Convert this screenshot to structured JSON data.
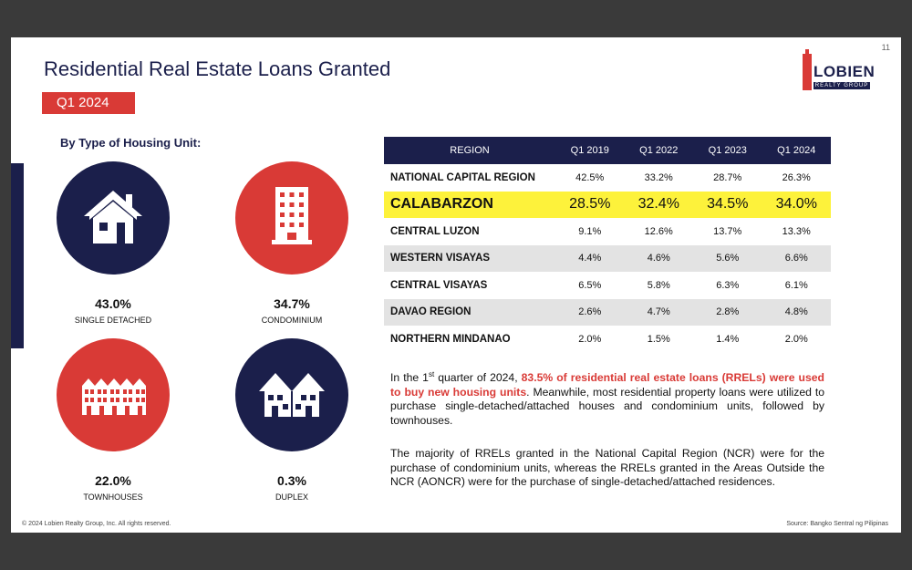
{
  "slide": {
    "page_number": "11",
    "title": "Residential Real Estate Loans Granted",
    "quarter": "Q1 2024",
    "logo": {
      "name": "LOBIEN",
      "tagline": "REALTY GROUP"
    },
    "left_heading": "By Type of Housing Unit:",
    "housing_units": [
      {
        "percent": "43.0%",
        "label": "SINGLE DETACHED",
        "icon": "house-icon",
        "color": "#1b1f4b"
      },
      {
        "percent": "34.7%",
        "label": "CONDOMINIUM",
        "icon": "building-icon",
        "color": "#d93a36"
      },
      {
        "percent": "22.0%",
        "label": "TOWNHOUSES",
        "icon": "townhouses-icon",
        "color": "#d93a36"
      },
      {
        "percent": "0.3%",
        "label": "DUPLEX",
        "icon": "duplex-icon",
        "color": "#1b1f4b"
      }
    ],
    "table": {
      "headers": [
        "REGION",
        "Q1 2019",
        "Q1 2022",
        "Q1 2023",
        "Q1 2024"
      ],
      "rows": [
        {
          "region": "NATIONAL CAPITAL REGION",
          "values": [
            "42.5%",
            "33.2%",
            "28.7%",
            "26.3%"
          ]
        },
        {
          "region": "CALABARZON",
          "values": [
            "28.5%",
            "32.4%",
            "34.5%",
            "34.0%"
          ],
          "highlight": true
        },
        {
          "region": "CENTRAL LUZON",
          "values": [
            "9.1%",
            "12.6%",
            "13.7%",
            "13.3%"
          ]
        },
        {
          "region": "WESTERN VISAYAS",
          "values": [
            "4.4%",
            "4.6%",
            "5.6%",
            "6.6%"
          ]
        },
        {
          "region": "CENTRAL VISAYAS",
          "values": [
            "6.5%",
            "5.8%",
            "6.3%",
            "6.1%"
          ]
        },
        {
          "region": "DAVAO REGION",
          "values": [
            "2.6%",
            "4.7%",
            "2.8%",
            "4.8%"
          ]
        },
        {
          "region": "NORTHERN MINDANAO",
          "values": [
            "2.0%",
            "1.5%",
            "1.4%",
            "2.0%"
          ]
        }
      ]
    },
    "paragraph1": {
      "pre": "In the 1",
      "sup": "st",
      "mid": " quarter of 2024, ",
      "highlight": "83.5% of residential real estate loans (RRELs) were used to buy new housing units",
      "post": ". Meanwhile, most residential property loans were utilized to purchase single-detached/attached houses and condominium units, followed by townhouses."
    },
    "paragraph2": "The majority of RRELs granted in the National Capital Region (NCR) were for the purchase of condominium units, whereas the RRELs granted in the Areas Outside the NCR (AONCR) were for the purchase of single-detached/attached residences.",
    "footer_left": "© 2024 Lobien Realty Group, Inc. All rights reserved.",
    "footer_right": "Source: Bangko Sentral ng Pilipinas"
  }
}
